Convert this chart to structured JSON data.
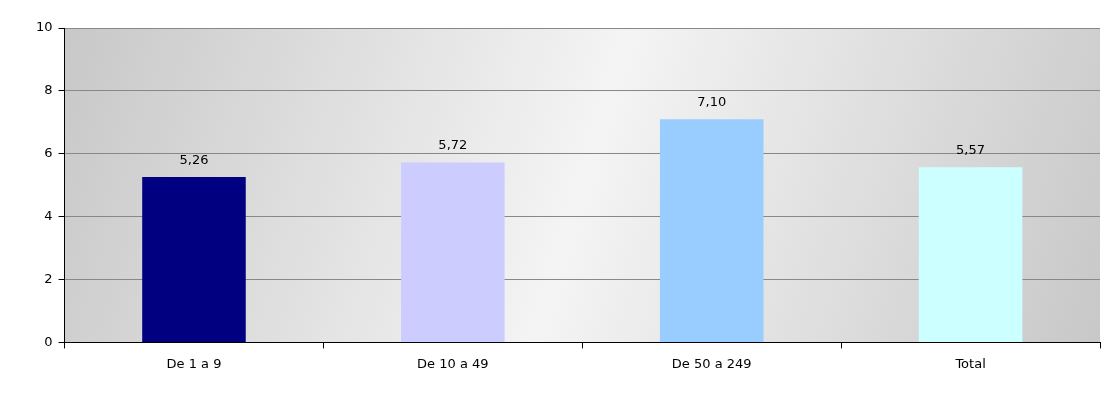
{
  "chart_data": {
    "type": "bar",
    "categories": [
      "De 1 a 9",
      "De 10 a 49",
      "De 50 a 249",
      "Total"
    ],
    "values": [
      5.26,
      5.72,
      7.1,
      5.57
    ],
    "colors": [
      "#000080",
      "#ccccff",
      "#99ccff",
      "#ccffff"
    ],
    "value_labels": [
      "5,26",
      "5,72",
      "7,10",
      "5,57"
    ],
    "ylim": [
      0,
      10
    ],
    "yticks": [
      0,
      2,
      4,
      6,
      8,
      10
    ],
    "grid": "y",
    "legend": false
  }
}
